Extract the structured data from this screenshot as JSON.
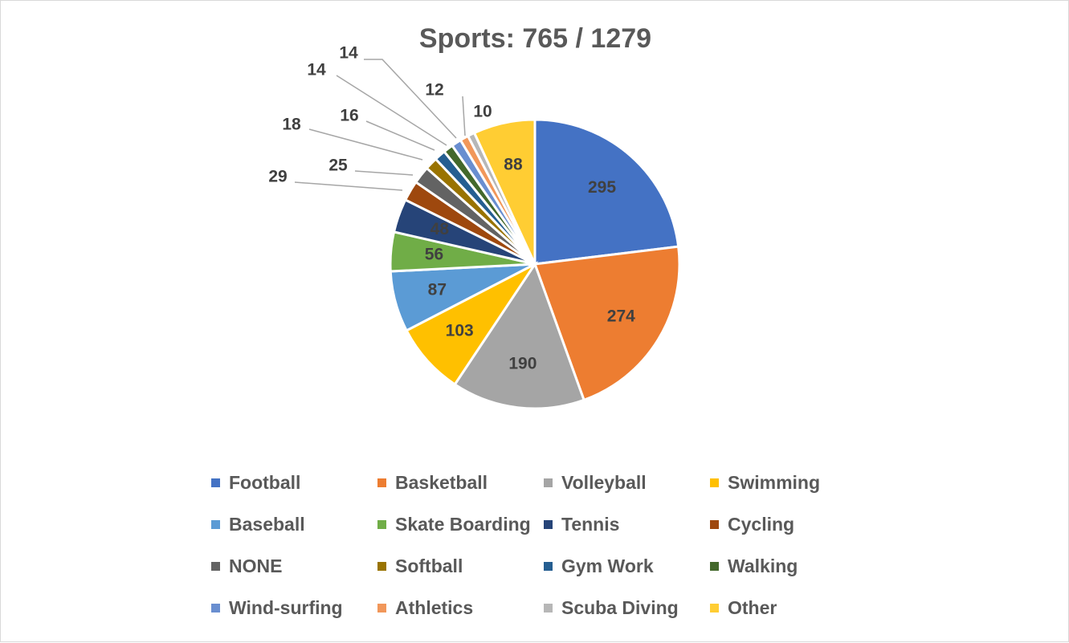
{
  "chart_data": {
    "type": "pie",
    "title": "Sports: 765 / 1279",
    "categories": [
      "Football",
      "Basketball",
      "Volleyball",
      "Swimming",
      "Baseball",
      "Skate Boarding",
      "Tennis",
      "Cycling",
      "NONE",
      "Softball",
      "Gym Work",
      "Walking",
      "Wind-surfing",
      "Athletics",
      "Scuba Diving",
      "Other"
    ],
    "values": [
      295,
      274,
      190,
      103,
      87,
      56,
      48,
      29,
      25,
      18,
      16,
      14,
      14,
      12,
      10,
      88
    ],
    "labels": [
      "295",
      "274",
      "190",
      "103",
      "87",
      "56",
      "48",
      "29",
      "25",
      "18",
      "16",
      "14",
      "14",
      "12",
      "10",
      "88"
    ],
    "colors": [
      "#4472c4",
      "#ed7d31",
      "#a5a5a5",
      "#ffc000",
      "#5b9bd5",
      "#70ad47",
      "#264478",
      "#9e480e",
      "#636363",
      "#997300",
      "#255e91",
      "#43682b",
      "#698ed0",
      "#f1975a",
      "#b7b7b7",
      "#ffcd33"
    ],
    "legend_position": "bottom"
  }
}
